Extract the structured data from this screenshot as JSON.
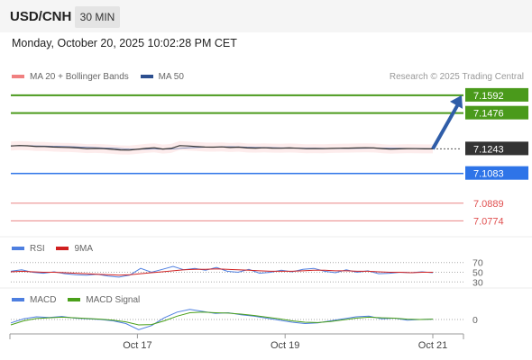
{
  "header": {
    "symbol": "USD/CNH",
    "timeframe": "30 MIN"
  },
  "date_line": "Monday, October 20, 2025 10:02:28 PM CET",
  "credit": "Research © 2025 Trading Central",
  "colors": {
    "target_green": "#4a9a1b",
    "pivot_blue": "#2e74e8",
    "support_red": "#e05050",
    "current_dark": "#333333",
    "arrow": "#2f5da8",
    "bollinger": "#f08080",
    "ma50": "#2d4f8f",
    "rsi": "#4e7fe0",
    "rsi_ma": "#d02020",
    "macd": "#4e7fe0",
    "macd_signal": "#4aa01a"
  },
  "chart_data": [
    {
      "type": "line",
      "title": "USD/CNH 30 MIN",
      "legend": [
        {
          "name": "MA 20 + Bollinger Bands",
          "color": "#f08080"
        },
        {
          "name": "MA 50",
          "color": "#2d4f8f"
        }
      ],
      "ylim": [
        7.07,
        7.165
      ],
      "price_series": {
        "name": "USD/CNH",
        "x": [
          0,
          2,
          4,
          6,
          8,
          10,
          12,
          14,
          16,
          18,
          20,
          22,
          24,
          26,
          28,
          30,
          32,
          34,
          36,
          38,
          40,
          42,
          44,
          46,
          48,
          50,
          52,
          54,
          56,
          58,
          60,
          62,
          64,
          66,
          68,
          70,
          72,
          74,
          76,
          78,
          80,
          82,
          84,
          86,
          88,
          90,
          92,
          94,
          96,
          98,
          100
        ],
        "values": [
          7.1262,
          7.1265,
          7.1263,
          7.1258,
          7.1258,
          7.1255,
          7.1253,
          7.1252,
          7.1249,
          7.1245,
          7.1246,
          7.1244,
          7.124,
          7.1236,
          7.1235,
          7.124,
          7.1246,
          7.125,
          7.1242,
          7.1246,
          7.1264,
          7.1262,
          7.1258,
          7.1255,
          7.1254,
          7.1256,
          7.1252,
          7.1254,
          7.1249,
          7.1248,
          7.125,
          7.1248,
          7.1247,
          7.1249,
          7.1247,
          7.1244,
          7.1245,
          7.1244,
          7.1246,
          7.1247,
          7.1248,
          7.1249,
          7.125,
          7.1249,
          7.1245,
          7.1241,
          7.1243,
          7.1245,
          7.1244,
          7.1243,
          7.1243
        ]
      },
      "levels": [
        {
          "label": "7.1592",
          "value": 7.1592,
          "kind": "target"
        },
        {
          "label": "7.1476",
          "value": 7.1476,
          "kind": "target"
        },
        {
          "label": "7.1243",
          "value": 7.1243,
          "kind": "current"
        },
        {
          "label": "7.1083",
          "value": 7.1083,
          "kind": "pivot"
        },
        {
          "label": "7.0889",
          "value": 7.0889,
          "kind": "support"
        },
        {
          "label": "7.0774",
          "value": 7.0774,
          "kind": "support"
        }
      ],
      "x_ticks": [
        {
          "label": "Oct 17",
          "x": 30
        },
        {
          "label": "Oct 19",
          "x": 65
        },
        {
          "label": "Oct 21",
          "x": 100
        }
      ],
      "projection": {
        "from": 7.1243,
        "to": 7.1592
      }
    },
    {
      "type": "line",
      "legend": [
        {
          "name": "RSI",
          "color": "#4e7fe0"
        },
        {
          "name": "9MA",
          "color": "#d02020"
        }
      ],
      "ylim": [
        25,
        75
      ],
      "y_ticks": [
        {
          "label": "70",
          "value": 70
        },
        {
          "label": "50",
          "value": 50
        },
        {
          "label": "30",
          "value": 30
        }
      ],
      "series": [
        {
          "name": "RSI",
          "values": [
            52,
            55,
            50,
            48,
            51,
            47,
            45,
            44,
            46,
            42,
            40,
            44,
            58,
            50,
            56,
            62,
            55,
            58,
            54,
            60,
            52,
            50,
            56,
            48,
            50,
            54,
            51,
            56,
            58,
            52,
            49,
            55,
            50,
            53,
            47,
            48,
            50,
            49,
            51,
            49
          ]
        },
        {
          "name": "9MA",
          "values": [
            51,
            52,
            51,
            50,
            50,
            49,
            48,
            47,
            46,
            45,
            44,
            45,
            47,
            49,
            51,
            53,
            55,
            56,
            56,
            57,
            56,
            55,
            54,
            53,
            52,
            52,
            52,
            53,
            54,
            54,
            53,
            53,
            52,
            52,
            51,
            50,
            50,
            49,
            50,
            50
          ]
        }
      ]
    },
    {
      "type": "line",
      "legend": [
        {
          "name": "MACD",
          "color": "#4e7fe0"
        },
        {
          "name": "MACD Signal",
          "color": "#4aa01a"
        }
      ],
      "ylim": [
        -0.004,
        0.004
      ],
      "y_ticks": [
        {
          "label": "0",
          "value": 0
        }
      ],
      "series": [
        {
          "name": "MACD",
          "values": [
            -0.001,
            0.0002,
            0.0008,
            0.0006,
            0.0009,
            0.0004,
            0.0002,
            0.0,
            -0.0004,
            -0.0012,
            -0.003,
            -0.0018,
            0.0005,
            0.0022,
            0.003,
            0.0024,
            0.0018,
            0.002,
            0.0014,
            0.001,
            0.0004,
            -0.0002,
            -0.0008,
            -0.0012,
            -0.001,
            -0.0004,
            0.0002,
            0.0008,
            0.001,
            0.0002,
            0.0004,
            -0.0002,
            0.0,
            0.0001
          ]
        },
        {
          "name": "MACD Signal",
          "values": [
            -0.0016,
            -0.0004,
            0.0003,
            0.0005,
            0.0007,
            0.0005,
            0.0003,
            0.0001,
            -0.0002,
            -0.0007,
            -0.0016,
            -0.0015,
            -0.0004,
            0.001,
            0.002,
            0.0022,
            0.002,
            0.0019,
            0.0016,
            0.0012,
            0.0007,
            0.0002,
            -0.0004,
            -0.0008,
            -0.0009,
            -0.0006,
            -0.0001,
            0.0004,
            0.0007,
            0.0005,
            0.0004,
            0.0001,
            0.0,
            0.0001
          ]
        }
      ]
    }
  ]
}
